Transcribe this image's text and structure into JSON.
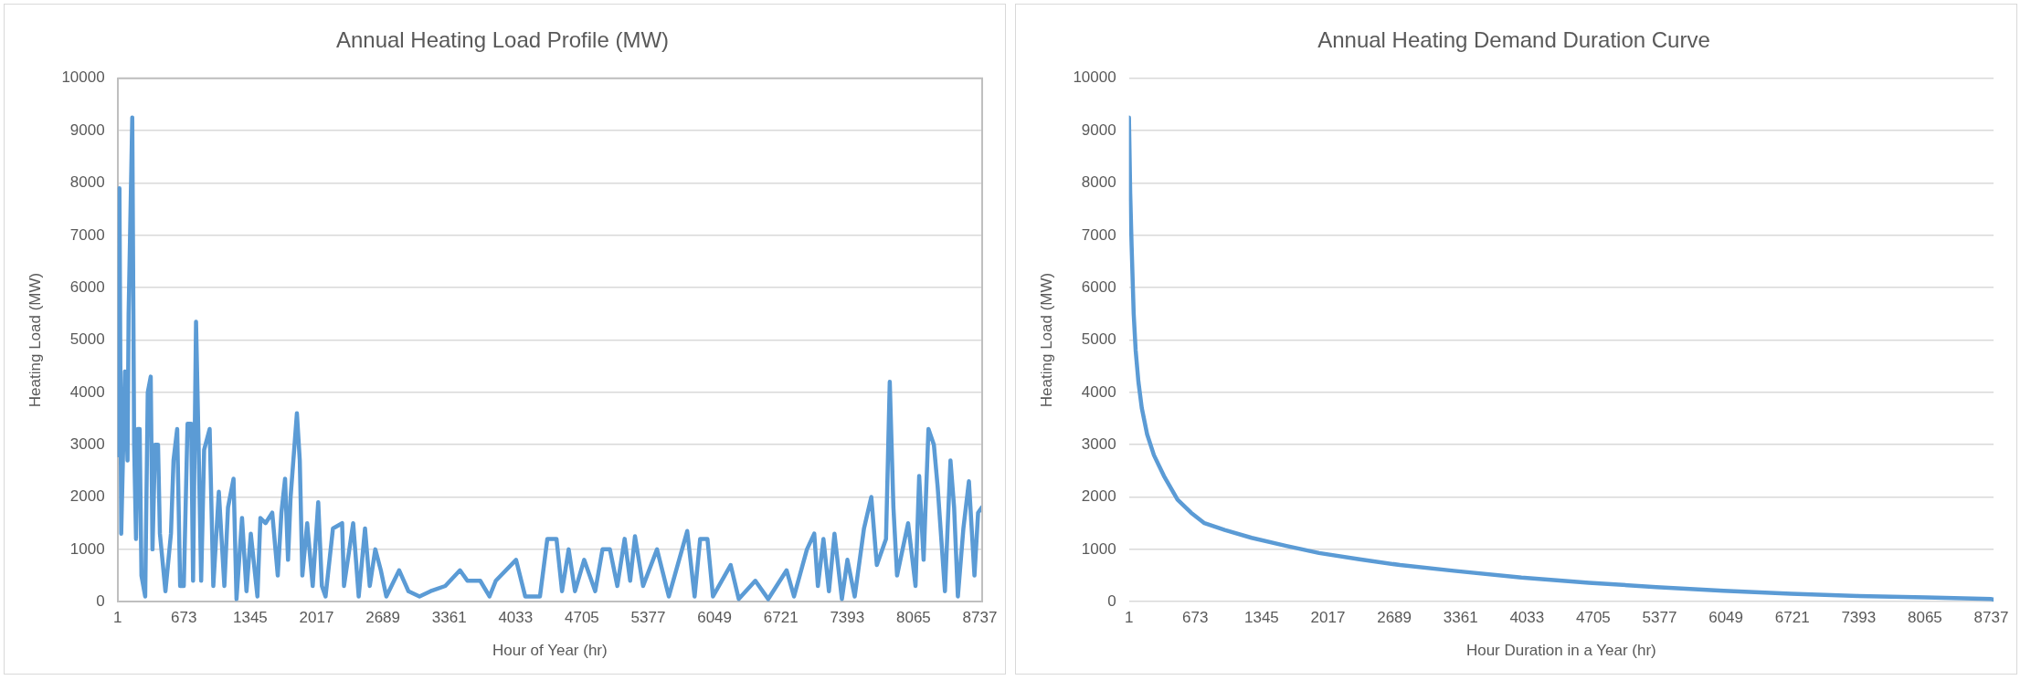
{
  "chart_data": [
    {
      "type": "line",
      "title": "Annual Heating Load Profile (MW)",
      "xlabel": "Hour of Year (hr)",
      "ylabel": "Heating Load (MW)",
      "xlim": [
        1,
        8760
      ],
      "xticks": [
        1,
        673,
        1345,
        2017,
        2689,
        3361,
        4033,
        4705,
        5377,
        6049,
        6721,
        7393,
        8065,
        8737
      ],
      "ylim": [
        0,
        10000
      ],
      "yticks": [
        0,
        1000,
        2000,
        3000,
        4000,
        5000,
        6000,
        7000,
        8000,
        9000,
        10000
      ],
      "grid": "y",
      "legend": false,
      "marker": "none",
      "line_style": "solid",
      "series": [
        {
          "color": "#5b9bd5",
          "x": [
            8,
            20,
            38,
            76,
            102,
            113,
            150,
            169,
            188,
            206,
            225,
            243,
            281,
            307,
            337,
            355,
            381,
            411,
            430,
            486,
            542,
            568,
            605,
            635,
            672,
            710,
            747,
            766,
            796,
            822,
            848,
            878,
            934,
            971,
            1027,
            1083,
            1120,
            1176,
            1206,
            1262,
            1307,
            1351,
            1418,
            1448,
            1500,
            1568,
            1624,
            1661,
            1698,
            1728,
            1754,
            1818,
            1847,
            1873,
            1922,
            1978,
            2034,
            2071,
            2108,
            2183,
            2276,
            2295,
            2388,
            2444,
            2508,
            2556,
            2612,
            2668,
            2724,
            2854,
            2948,
            3060,
            3172,
            3321,
            3470,
            3545,
            3675,
            3769,
            3833,
            4038,
            4131,
            4280,
            4355,
            4448,
            4504,
            4571,
            4635,
            4728,
            4840,
            4914,
            4989,
            5064,
            5138,
            5194,
            5243,
            5325,
            5466,
            5586,
            5772,
            5847,
            5903,
            5977,
            6033,
            6212,
            6294,
            6462,
            6593,
            6779,
            6854,
            6985,
            7059,
            7096,
            7152,
            7208,
            7264,
            7339,
            7395,
            7469,
            7563,
            7637,
            7693,
            7786,
            7824,
            7861,
            7898,
            8010,
            8085,
            8122,
            8167,
            8216,
            8271,
            8309,
            8383,
            8439,
            8476,
            8514,
            8570,
            8626,
            8682,
            8719,
            8756
          ],
          "values": [
            2800,
            7900,
            1300,
            4400,
            2700,
            5500,
            9250,
            3000,
            1200,
            3300,
            3300,
            500,
            100,
            4000,
            4300,
            1000,
            3000,
            3000,
            1300,
            200,
            1300,
            2700,
            3300,
            300,
            300,
            3400,
            3400,
            400,
            5350,
            3000,
            400,
            2900,
            3300,
            300,
            2100,
            300,
            1800,
            2350,
            50,
            1600,
            200,
            1300,
            100,
            1600,
            1500,
            1700,
            500,
            1700,
            2350,
            800,
            2000,
            3600,
            2700,
            500,
            1500,
            300,
            1900,
            300,
            100,
            1400,
            1500,
            300,
            1500,
            100,
            1400,
            300,
            1000,
            600,
            100,
            600,
            200,
            100,
            200,
            300,
            600,
            400,
            400,
            100,
            400,
            800,
            100,
            100,
            1200,
            1200,
            200,
            1000,
            200,
            800,
            200,
            1000,
            1000,
            300,
            1200,
            400,
            1250,
            300,
            1000,
            100,
            1350,
            100,
            1200,
            1200,
            100,
            700,
            50,
            400,
            50,
            600,
            100,
            1000,
            1300,
            300,
            1200,
            200,
            1300,
            50,
            800,
            100,
            1400,
            2000,
            700,
            1200,
            4200,
            1800,
            500,
            1500,
            300,
            2400,
            800,
            3300,
            3000,
            2200,
            200,
            2700,
            1800,
            100,
            1400,
            2300,
            500,
            1700,
            1800
          ]
        }
      ]
    },
    {
      "type": "line",
      "title": "Annual Heating Demand Duration Curve",
      "xlabel": "Hour Duration in a Year (hr)",
      "ylabel": "Heating Load (MW)",
      "xlim": [
        1,
        8760
      ],
      "xticks": [
        1,
        673,
        1345,
        2017,
        2689,
        3361,
        4033,
        4705,
        5377,
        6049,
        6721,
        7393,
        8065,
        8737
      ],
      "ylim": [
        0,
        10000
      ],
      "yticks": [
        0,
        1000,
        2000,
        3000,
        4000,
        5000,
        6000,
        7000,
        8000,
        9000,
        10000
      ],
      "grid": "y",
      "legend": false,
      "marker": "none",
      "line_style": "solid",
      "series": [
        {
          "color": "#5b9bd5",
          "x": [
            1,
            14,
            28,
            49,
            69,
            97,
            131,
            185,
            254,
            356,
            493,
            630,
            766,
            971,
            1244,
            1586,
            1927,
            2337,
            2747,
            3293,
            3977,
            4660,
            5343,
            6025,
            6708,
            7391,
            8074,
            8737,
            8760
          ],
          "values": [
            9250,
            7800,
            6800,
            5500,
            4800,
            4200,
            3700,
            3200,
            2800,
            2400,
            1950,
            1700,
            1500,
            1370,
            1220,
            1070,
            930,
            810,
            700,
            590,
            460,
            360,
            280,
            210,
            150,
            110,
            80,
            50,
            40
          ]
        }
      ]
    }
  ]
}
